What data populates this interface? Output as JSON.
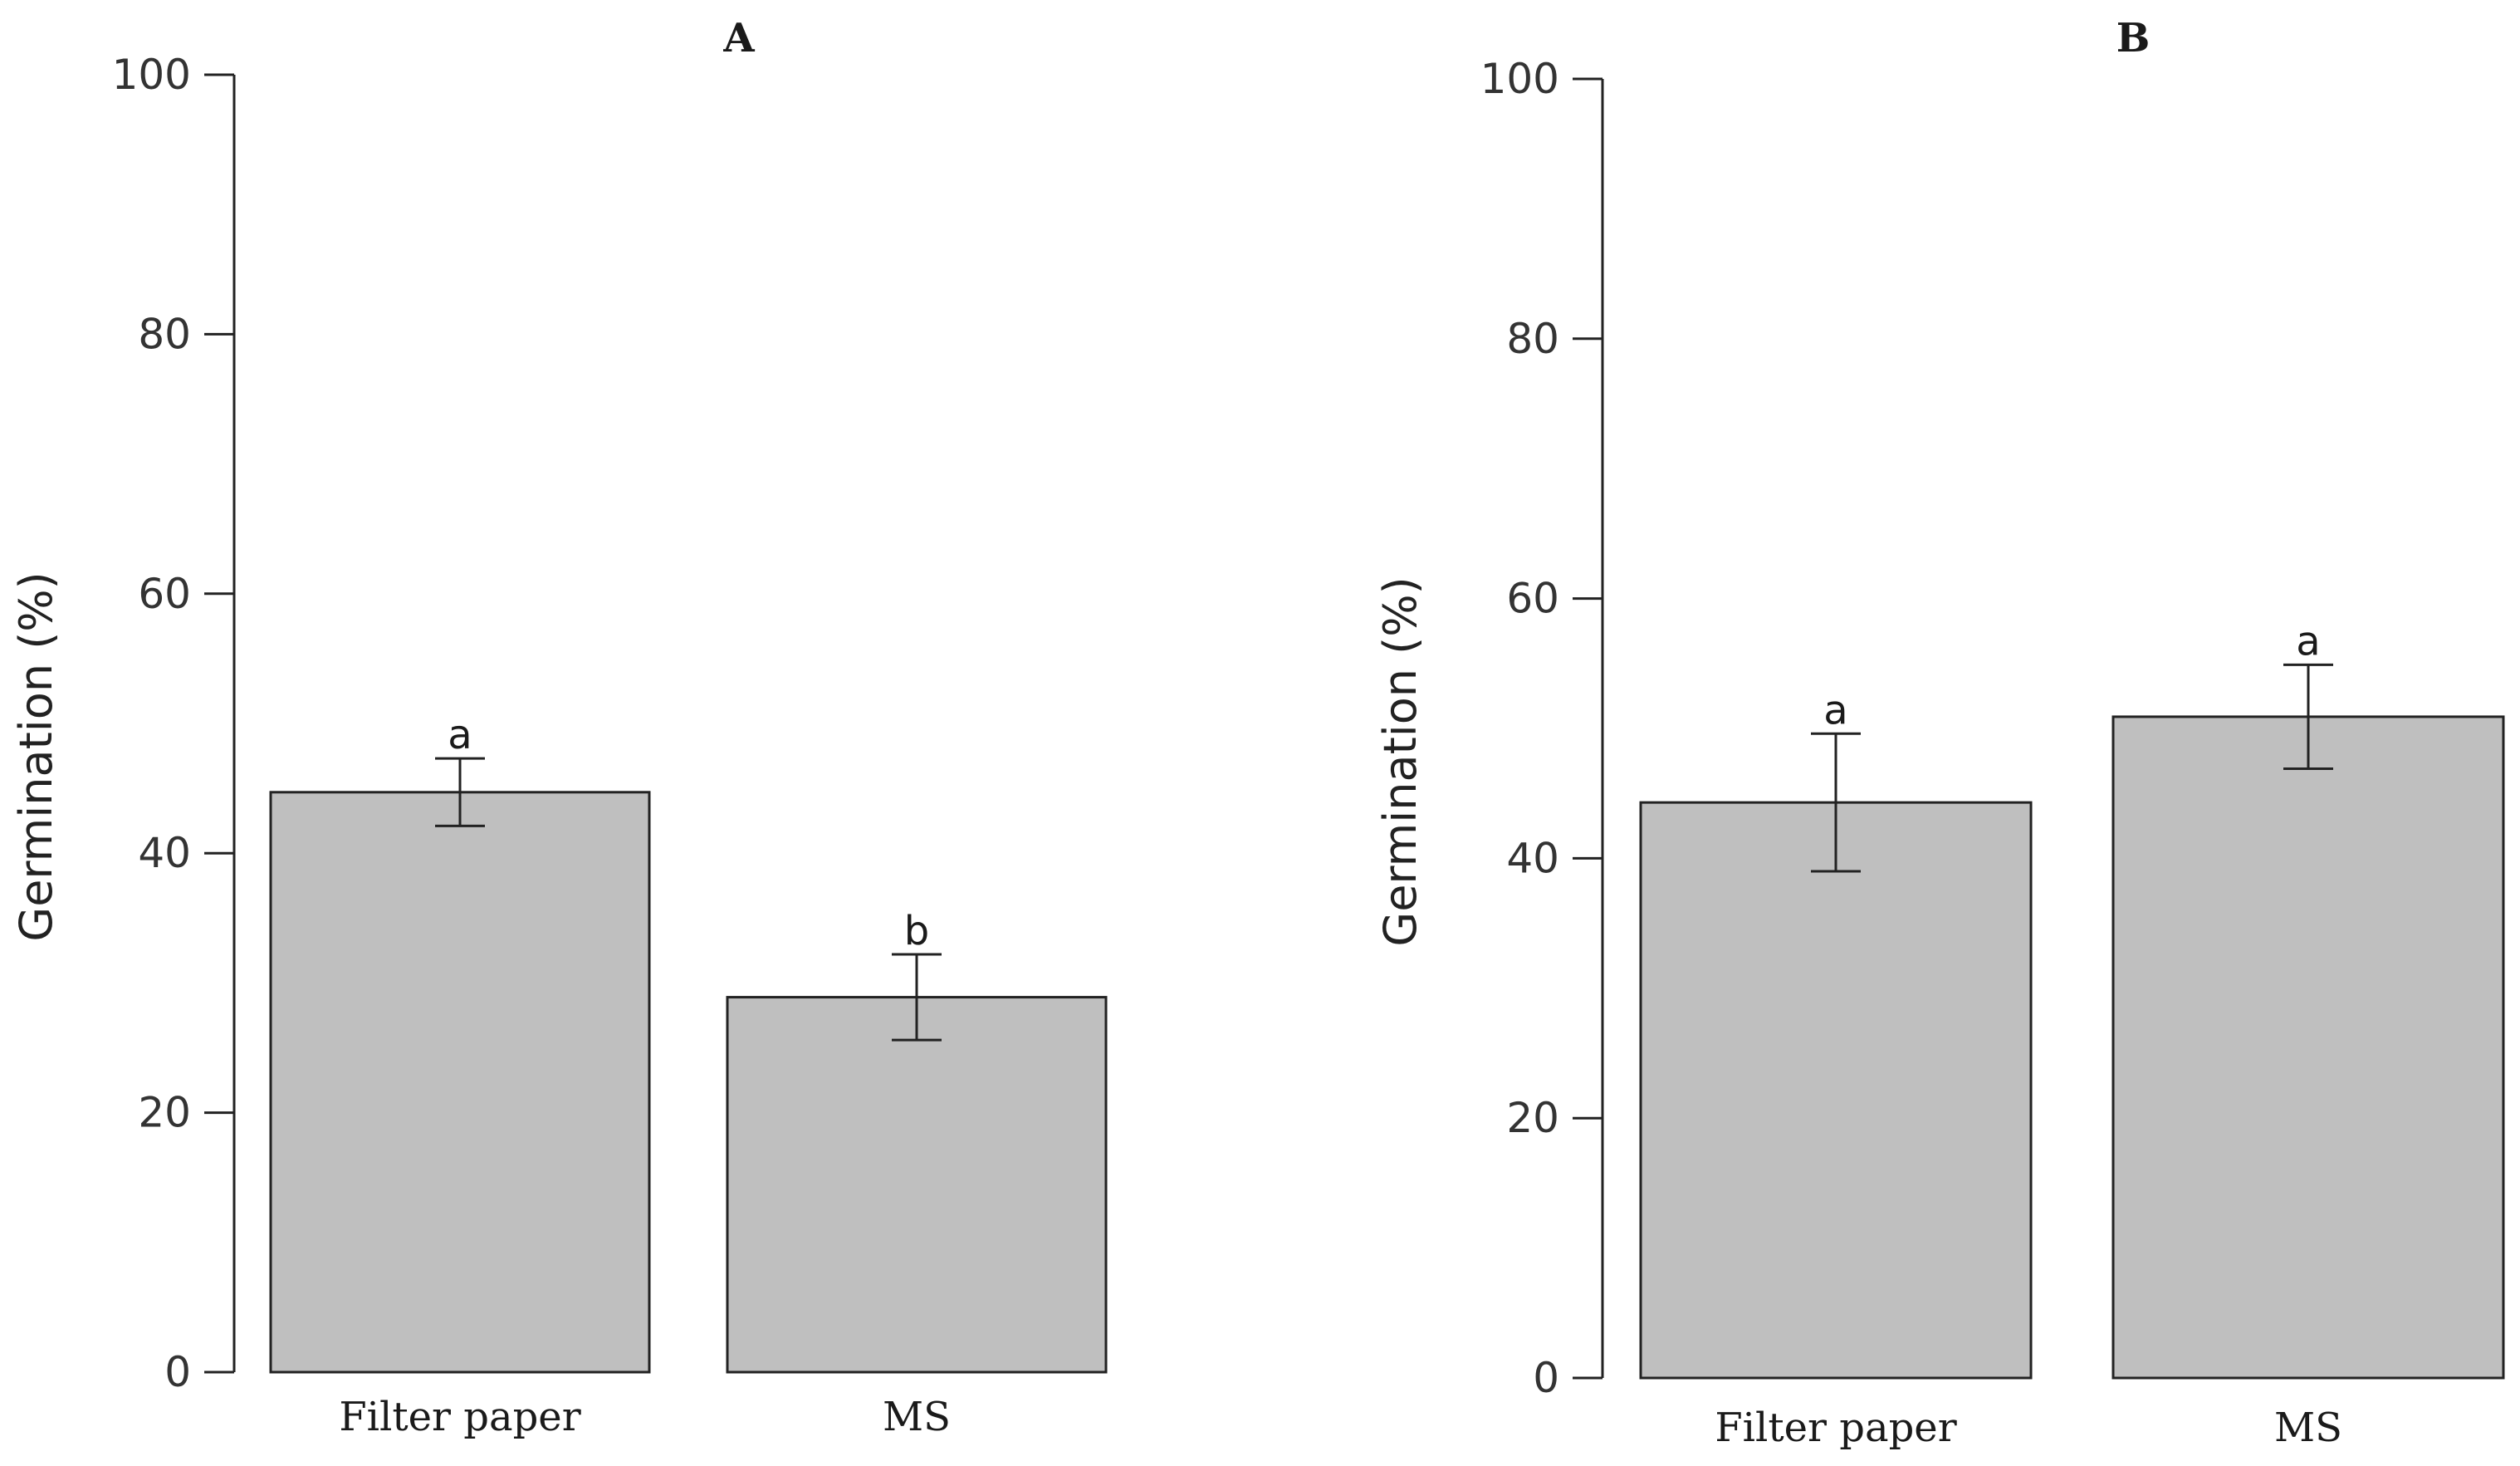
{
  "chart_data": [
    {
      "type": "bar",
      "title": "A",
      "ylabel": "Germination (%)",
      "xlabel": "",
      "ylim": [
        0,
        100
      ],
      "yticks": [
        "0",
        "20",
        "40",
        "60",
        "80",
        "100"
      ],
      "categories": [
        "Filter paper",
        "MS"
      ],
      "values": [
        44.7,
        28.9
      ],
      "errors": [
        2.6,
        3.3
      ],
      "significance": [
        "a",
        "b"
      ],
      "bar_color": "#bfbfbf",
      "grid": false
    },
    {
      "type": "bar",
      "title": "B",
      "ylabel": "Germination (%)",
      "xlabel": "",
      "ylim": [
        0,
        100
      ],
      "yticks": [
        "0",
        "20",
        "40",
        "60",
        "80",
        "100"
      ],
      "categories": [
        "Filter paper",
        "MS"
      ],
      "values": [
        44.3,
        50.9
      ],
      "errors": [
        5.3,
        4.0
      ],
      "significance": [
        "a",
        "a"
      ],
      "bar_color": "#bfbfbf",
      "grid": false
    }
  ]
}
